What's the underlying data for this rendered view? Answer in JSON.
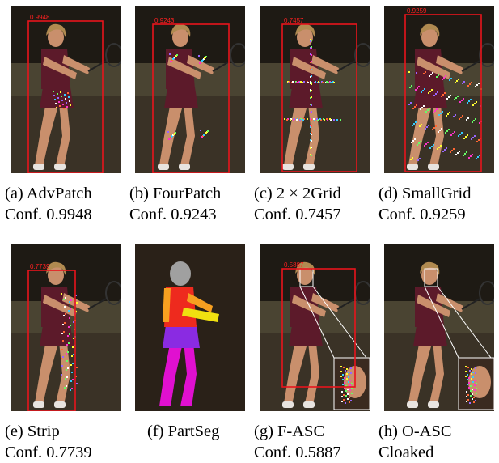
{
  "figure": {
    "panels": [
      {
        "id": "a",
        "caption": "(a) AdvPatch",
        "conf": "Conf. 0.9948",
        "box_label": "0.9948",
        "attack": "advpatch"
      },
      {
        "id": "b",
        "caption": "(b) FourPatch",
        "conf": "Conf. 0.9243",
        "box_label": "0.9243",
        "attack": "fourpatch"
      },
      {
        "id": "c",
        "caption": "(c) 2 × 2Grid",
        "conf": "Conf. 0.7457",
        "box_label": "0.7457",
        "attack": "grid2x2"
      },
      {
        "id": "d",
        "caption": "(d) SmallGrid",
        "conf": "Conf. 0.9259",
        "box_label": "0.9259",
        "attack": "smallgrid"
      },
      {
        "id": "e",
        "caption": "(e) Strip",
        "conf": "Conf. 0.7739",
        "box_label": "0.7739",
        "attack": "strip"
      },
      {
        "id": "f",
        "caption": "(f) PartSeg",
        "conf": "",
        "box_label": "",
        "attack": "partseg"
      },
      {
        "id": "g",
        "caption": "(g) F-ASC",
        "conf": "Conf. 0.5887",
        "box_label": "0.5887",
        "attack": "fasc"
      },
      {
        "id": "h",
        "caption": "(h) O-ASC",
        "conf": "Cloaked",
        "box_label": "",
        "attack": "oasc"
      }
    ],
    "colors": {
      "bbox": "#e8141c",
      "background_dark": "#2a241c",
      "court": "#3a3226",
      "shirt": "#5c1a2a",
      "skin": "#c98f6c",
      "seg_head": "#a0a0a0",
      "seg_torso": "#ee2a1e",
      "seg_arm": "#f7a020",
      "seg_hand": "#f0e010",
      "seg_hips": "#8a2be2",
      "seg_legs": "#e010d0"
    }
  }
}
